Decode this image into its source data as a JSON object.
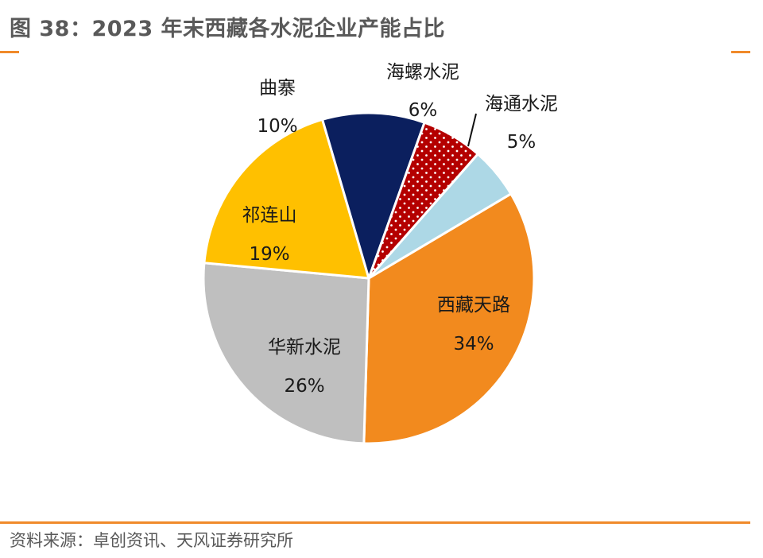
{
  "title": "图 38：2023 年末西藏各水泥企业产能占比",
  "source": "资料来源：卓创资讯、天风证券研究所",
  "colors": {
    "accent_rule": "#f08a2a",
    "text": "#595959"
  },
  "chart_data": {
    "type": "pie",
    "slices": [
      {
        "name": "西藏天路",
        "value": 34,
        "label": "34%",
        "color": "#f28a1e"
      },
      {
        "name": "华新水泥",
        "value": 26,
        "label": "26%",
        "color": "#bfbfbf"
      },
      {
        "name": "祁连山",
        "value": 19,
        "label": "19%",
        "color": "#ffc000"
      },
      {
        "name": "曲寨",
        "value": 10,
        "label": "10%",
        "color": "#0b1f5e"
      },
      {
        "name": "海螺水泥",
        "value": 6,
        "label": "6%",
        "color": "#b40000",
        "pattern": "dots"
      },
      {
        "name": "海通水泥",
        "value": 5,
        "label": "5%",
        "color": "#add8e6"
      }
    ]
  }
}
